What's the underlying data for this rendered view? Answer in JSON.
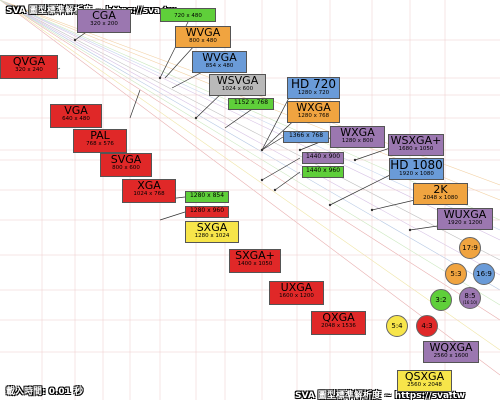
{
  "watermark_top": "SVA 圖型標準解析度 ~ https://sva.tw",
  "watermark_bottom": "SVA 圖型標準解析度 ~ https://sva.tw",
  "load_time": "載入時間: 0.01 秒",
  "resolutions": {
    "cga": {
      "name": "CGA",
      "res": "320 x 200",
      "color": "#9b77b0"
    },
    "top": {
      "name": "",
      "res": "720 x 480",
      "color": "#5fcf3a"
    },
    "qvga": {
      "name": "QVGA",
      "res": "320 x 240",
      "color": "#e02828"
    },
    "wvga8": {
      "name": "WVGA",
      "res": "800 x 480",
      "color": "#f0a440"
    },
    "wvga854": {
      "name": "WVGA",
      "res": "854 x 480",
      "color": "#6a9bd8"
    },
    "wsvga": {
      "name": "WSVGA",
      "res": "1024 x 600",
      "color": "#b9b9b9"
    },
    "hd720": {
      "name": "HD 720",
      "res": "1280 x 720",
      "color": "#6a9bd8"
    },
    "r1152": {
      "name": "1152 x 768",
      "res": "",
      "color": "#5fcf3a"
    },
    "vga": {
      "name": "VGA",
      "res": "640 x 480",
      "color": "#e02828"
    },
    "wxga": {
      "name": "WXGA",
      "res": "1280 x 768",
      "color": "#f0a440"
    },
    "pal": {
      "name": "PAL",
      "res": "768 x 576",
      "color": "#e02828"
    },
    "r1366": {
      "name": "1366 x 768",
      "res": "",
      "color": "#6a9bd8"
    },
    "wxga2": {
      "name": "WXGA",
      "res": "1280 x 800",
      "color": "#9b77b0"
    },
    "wsxgap": {
      "name": "WSXGA+",
      "res": "1680 x 1050",
      "color": "#9b77b0"
    },
    "svga": {
      "name": "SVGA",
      "res": "800 x 600",
      "color": "#e02828"
    },
    "r1440a": {
      "name": "1440 x 900",
      "res": "",
      "color": "#9b77b0"
    },
    "hd1080": {
      "name": "HD 1080",
      "res": "1920 x 1080",
      "color": "#6a9bd8"
    },
    "r1440b": {
      "name": "1440 x 960",
      "res": "",
      "color": "#5fcf3a"
    },
    "xga": {
      "name": "XGA",
      "res": "1024 x 768",
      "color": "#e02828"
    },
    "k2": {
      "name": "2K",
      "res": "2048 x 1080",
      "color": "#f0a440"
    },
    "r1280a": {
      "name": "1280 x 854",
      "res": "",
      "color": "#5fcf3a"
    },
    "wuxga": {
      "name": "WUXGA",
      "res": "1920 x 1200",
      "color": "#9b77b0"
    },
    "r1280b": {
      "name": "1280 x 960",
      "res": "",
      "color": "#e02828"
    },
    "sxga": {
      "name": "SXGA",
      "res": "1280 x 1024",
      "color": "#f7e54a"
    },
    "sxgap": {
      "name": "SXGA+",
      "res": "1400 x 1050",
      "color": "#e02828"
    },
    "uxga": {
      "name": "UXGA",
      "res": "1600 x 1200",
      "color": "#e02828"
    },
    "qxga": {
      "name": "QXGA",
      "res": "2048 x 1536",
      "color": "#e02828"
    },
    "wqxga": {
      "name": "WQXGA",
      "res": "2560 x 1600",
      "color": "#9b77b0"
    },
    "qsxga": {
      "name": "QSXGA",
      "res": "2560 x 2048",
      "color": "#f7e54a"
    }
  },
  "ratios": {
    "r179": {
      "label": "17:9",
      "color": "#f0a440"
    },
    "r53": {
      "label": "5:3",
      "color": "#f0a440"
    },
    "r169": {
      "label": "16:9",
      "color": "#6a9bd8"
    },
    "r32": {
      "label": "3:2",
      "color": "#5fcf3a"
    },
    "r85": {
      "label": "8:5",
      "sub": "(16:10)",
      "color": "#9b77b0"
    },
    "r54": {
      "label": "5:4",
      "color": "#f7e54a"
    },
    "r43": {
      "label": "4:3",
      "color": "#e02828"
    }
  }
}
